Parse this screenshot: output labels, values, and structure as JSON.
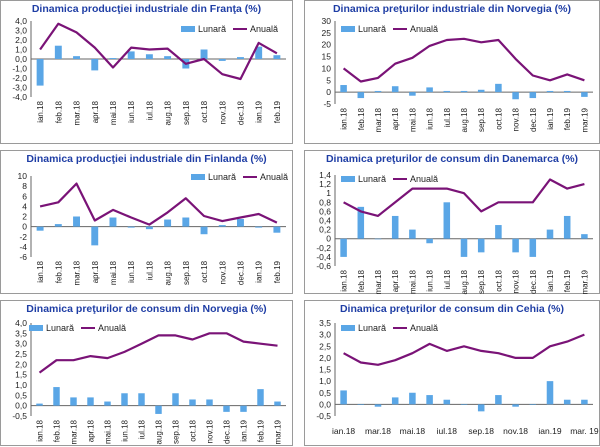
{
  "colors": {
    "bar": "#5aa6e6",
    "line": "#7a1377",
    "title": "#1f3ea5",
    "axis": "#666666"
  },
  "chart_data": [
    {
      "type": "bar+line",
      "title": "Dinamica producţiei industriale din Franţa (%)",
      "legend": [
        "Lunară",
        "Anuală"
      ],
      "legend_position": "top-right",
      "categories": [
        "ian.18",
        "feb.18",
        "mar.18",
        "apr.18",
        "mai.18",
        "iun.18",
        "iul.18",
        "aug.18",
        "sep.18",
        "oct.18",
        "nov.18",
        "dec.18",
        "ian.19",
        "feb.19"
      ],
      "x_tick_labels": [
        "ian.18",
        "feb.18",
        "mar.18",
        "apr.18",
        "mai.18",
        "iun.18",
        "iul.18",
        "aug.18",
        "sep.18",
        "oct.18",
        "nov.18",
        "dec.18",
        "ian.19",
        "feb.19"
      ],
      "series": [
        {
          "name": "Lunară",
          "kind": "bar",
          "values": [
            -2.8,
            1.4,
            0.3,
            -1.2,
            0.1,
            0.8,
            0.5,
            0.3,
            -1.0,
            1.0,
            -0.2,
            0.2,
            1.3,
            0.4
          ]
        },
        {
          "name": "Anuală",
          "kind": "line",
          "values": [
            1.0,
            3.7,
            2.8,
            1.2,
            -0.9,
            1.2,
            1.0,
            1.1,
            -0.5,
            0.0,
            -1.6,
            -2.1,
            1.7,
            0.6
          ]
        }
      ],
      "y_ticks": [
        -4.0,
        -3.0,
        -2.0,
        -1.0,
        0.0,
        1.0,
        2.0,
        3.0,
        4.0
      ],
      "y_tick_labels": [
        "-4,0",
        "-3,0",
        "-2,0",
        "-1,0",
        "0,0",
        "1,0",
        "2,0",
        "3,0",
        "4,0"
      ],
      "ylim": [
        -4,
        4
      ]
    },
    {
      "type": "bar+line",
      "title": "Dinamica preţurilor industriale din Norvegia (%)",
      "legend": [
        "Lunară",
        "Anuală"
      ],
      "legend_position": "top-left",
      "categories": [
        "ian.18",
        "feb.18",
        "mar.18",
        "apr.18",
        "mai.18",
        "iun.18",
        "iul.18",
        "aug.18",
        "sep.18",
        "oct.18",
        "nov.18",
        "dec.18",
        "ian.19",
        "feb.19",
        "mar.19"
      ],
      "x_tick_labels": [
        "ian.18",
        "feb.18",
        "mar.18",
        "apr.18",
        "mai.18",
        "iun.18",
        "iul.18",
        "aug.18",
        "sep.18",
        "oct.18",
        "nov.18",
        "dec.18",
        "ian.19",
        "feb.19",
        "mar.19"
      ],
      "series": [
        {
          "name": "Lunară",
          "kind": "bar",
          "values": [
            3.0,
            -2.5,
            0.5,
            2.5,
            -1.5,
            2.0,
            0.5,
            0.5,
            1.0,
            3.5,
            -3.0,
            -2.5,
            0.5,
            0.5,
            -2.0
          ]
        },
        {
          "name": "Anuală",
          "kind": "line",
          "values": [
            10.0,
            4.5,
            6.0,
            12.0,
            14.5,
            19.5,
            22.0,
            22.5,
            21.0,
            22.0,
            14.0,
            7.0,
            5.0,
            7.5,
            5.0
          ]
        }
      ],
      "y_ticks": [
        -5,
        0,
        5,
        10,
        15,
        20,
        25,
        30
      ],
      "y_tick_labels": [
        "-5",
        "0",
        "5",
        "10",
        "15",
        "20",
        "25",
        "30"
      ],
      "ylim": [
        -5,
        30
      ]
    },
    {
      "type": "bar+line",
      "title": "Dinamica producţiei industriale din Finlanda (%)",
      "legend": [
        "Lunară",
        "Anuală"
      ],
      "legend_position": "top-right",
      "categories": [
        "ian.18",
        "feb.18",
        "mar.18",
        "apr.18",
        "mai.18",
        "iun.18",
        "iul.18",
        "aug.18",
        "sep.18",
        "oct.18",
        "nov.18",
        "dec.18",
        "ian.19",
        "feb.19"
      ],
      "x_tick_labels": [
        "ian.18",
        "feb.18",
        "mar.18",
        "apr.18",
        "mai.18",
        "iun.18",
        "iul.18",
        "aug.18",
        "sep.18",
        "oct.18",
        "nov.18",
        "dec.18",
        "ian.19",
        "feb.19"
      ],
      "series": [
        {
          "name": "Lunară",
          "kind": "bar",
          "values": [
            -0.8,
            0.5,
            2.0,
            -3.7,
            1.8,
            -0.2,
            -0.5,
            1.4,
            1.8,
            -1.5,
            0.3,
            1.5,
            -0.2,
            -1.2
          ]
        },
        {
          "name": "Anuală",
          "kind": "line",
          "values": [
            4.0,
            4.8,
            8.5,
            1.2,
            3.3,
            1.8,
            0.4,
            2.8,
            5.6,
            2.1,
            1.1,
            1.8,
            2.5,
            0.8
          ]
        }
      ],
      "y_ticks": [
        -6,
        -4,
        -2,
        0,
        2,
        4,
        6,
        8,
        10
      ],
      "y_tick_labels": [
        "-6",
        "-4",
        "-2",
        "0",
        "2",
        "4",
        "6",
        "8",
        "10"
      ],
      "ylim": [
        -6,
        10
      ]
    },
    {
      "type": "bar+line",
      "title": "Dinamica preţurilor de consum din Danemarca (%)",
      "legend": [
        "Lunară",
        "Anuală"
      ],
      "legend_position": "top-left",
      "categories": [
        "ian.18",
        "feb.18",
        "mar.18",
        "apr.18",
        "mai.18",
        "iun.18",
        "iul.18",
        "aug.18",
        "sep.18",
        "oct.18",
        "nov.18",
        "dec.18",
        "ian.19",
        "feb.19",
        "mar.19"
      ],
      "x_tick_labels": [
        "ian.18",
        "feb.18",
        "mar.18",
        "apr.18",
        "mai.18",
        "iun.18",
        "iul.18",
        "aug.18",
        "sep.18",
        "oct.18",
        "nov.18",
        "dec.18",
        "ian.19",
        "feb.19",
        "mar.19"
      ],
      "series": [
        {
          "name": "Lunară",
          "kind": "bar",
          "values": [
            -0.4,
            0.7,
            0.0,
            0.5,
            0.2,
            -0.1,
            0.8,
            -0.4,
            -0.3,
            0.3,
            -0.3,
            -0.4,
            0.2,
            0.5,
            0.1
          ]
        },
        {
          "name": "Anuală",
          "kind": "line",
          "values": [
            0.8,
            0.6,
            0.5,
            0.8,
            1.1,
            1.1,
            1.1,
            1.0,
            0.6,
            0.8,
            0.8,
            0.8,
            1.3,
            1.1,
            1.2
          ]
        }
      ],
      "y_ticks": [
        -0.6,
        -0.4,
        -0.2,
        0.0,
        0.2,
        0.4,
        0.6,
        0.8,
        1.0,
        1.2,
        1.4
      ],
      "y_tick_labels": [
        "-0,6",
        "-0,4",
        "-0,2",
        "0",
        "0,2",
        "0,4",
        "0,6",
        "0,8",
        "1",
        "1,2",
        "1,4"
      ],
      "ylim": [
        -0.6,
        1.4
      ]
    },
    {
      "type": "bar+line",
      "title": "Dinamica preţurilor de consum din Norvegia (%)",
      "legend": [
        "Lunară",
        "Anuală"
      ],
      "legend_position": "top-left",
      "categories": [
        "ian.18",
        "feb.18",
        "mar.18",
        "apr.18",
        "mai.18",
        "iun.18",
        "iul.18",
        "aug.18",
        "sep.18",
        "oct.18",
        "nov.18",
        "dec.18",
        "ian.19",
        "feb.19",
        "mar.19"
      ],
      "x_tick_labels": [
        "ian.18",
        "feb.18",
        "mar.18",
        "apr.18",
        "mai.18",
        "iun.18",
        "iul.18",
        "aug.18",
        "sep.18",
        "oct.18",
        "nov.18",
        "dec.18",
        "ian.19",
        "feb.19",
        "mar.19"
      ],
      "series": [
        {
          "name": "Lunară",
          "kind": "bar",
          "values": [
            0.1,
            0.9,
            0.4,
            0.4,
            0.2,
            0.6,
            0.6,
            -0.4,
            0.6,
            0.3,
            0.3,
            -0.3,
            -0.3,
            0.8,
            0.2
          ]
        },
        {
          "name": "Anuală",
          "kind": "line",
          "values": [
            1.6,
            2.2,
            2.2,
            2.4,
            2.3,
            2.6,
            3.0,
            3.4,
            3.4,
            3.2,
            3.5,
            3.5,
            3.1,
            3.0,
            2.9
          ]
        }
      ],
      "y_ticks": [
        -0.5,
        0.0,
        0.5,
        1.0,
        1.5,
        2.0,
        2.5,
        3.0,
        3.5,
        4.0
      ],
      "y_tick_labels": [
        "-0,5",
        "0,0",
        "0,5",
        "1,0",
        "1,5",
        "2,0",
        "2,5",
        "3,0",
        "3,5",
        "4,0"
      ],
      "ylim": [
        -0.5,
        4.0
      ]
    },
    {
      "type": "bar+line",
      "title": "Dinamica preţurilor de consum din Cehia (%)",
      "legend": [
        "Lunară",
        "Anuală"
      ],
      "legend_position": "top-left",
      "categories": [
        "ian.18",
        "feb.18",
        "mar.18",
        "apr.18",
        "mai.18",
        "iun.18",
        "iul.18",
        "aug.18",
        "sep.18",
        "oct.18",
        "nov.18",
        "dec.18",
        "ian.19",
        "feb.19",
        "mar.19"
      ],
      "x_tick_labels": [
        "ian.18",
        "",
        "mar.18",
        "",
        "mai.18",
        "",
        "iul.18",
        "",
        "sep.18",
        "",
        "nov.18",
        "",
        "ian.19",
        "",
        "mar. 19"
      ],
      "series": [
        {
          "name": "Lunară",
          "kind": "bar",
          "values": [
            0.6,
            0.0,
            -0.1,
            0.3,
            0.5,
            0.4,
            0.2,
            0.0,
            -0.3,
            0.4,
            -0.1,
            0.0,
            1.0,
            0.2,
            0.2
          ]
        },
        {
          "name": "Anuală",
          "kind": "line",
          "values": [
            2.2,
            1.8,
            1.7,
            1.9,
            2.2,
            2.6,
            2.3,
            2.5,
            2.3,
            2.2,
            2.0,
            2.0,
            2.5,
            2.7,
            3.0
          ]
        }
      ],
      "y_ticks": [
        -0.5,
        0.0,
        0.5,
        1.0,
        1.5,
        2.0,
        2.5,
        3.0,
        3.5
      ],
      "y_tick_labels": [
        "-0,5",
        "0,0",
        "0,5",
        "1,0",
        "1,5",
        "2,0",
        "2,5",
        "3,0",
        "3,5"
      ],
      "ylim": [
        -0.5,
        3.5
      ]
    }
  ]
}
